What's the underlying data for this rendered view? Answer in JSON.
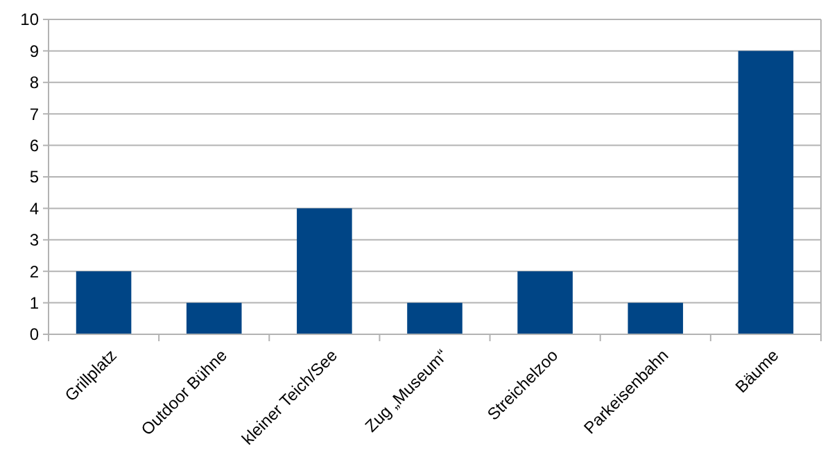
{
  "chart_data": {
    "type": "bar",
    "categories": [
      "Grillplatz",
      "Outdoor Bühne",
      "kleiner Teich/See",
      "Zug „Museum“",
      "Streichelzoo",
      "Parkeisenbahn",
      "Bäume"
    ],
    "values": [
      2,
      1,
      4,
      1,
      2,
      1,
      9
    ],
    "color": "#004586",
    "ylim": [
      0,
      10
    ],
    "yticks": [
      0,
      1,
      2,
      3,
      4,
      5,
      6,
      7,
      8,
      9,
      10
    ],
    "grid": "y"
  }
}
